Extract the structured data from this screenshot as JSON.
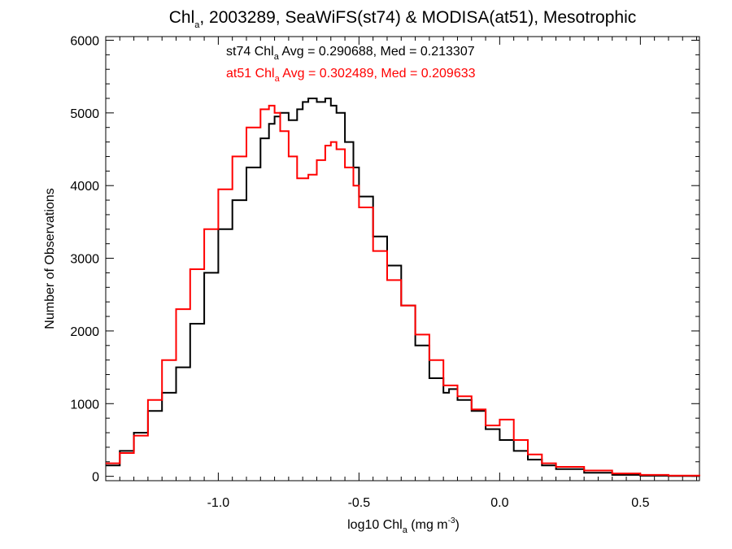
{
  "chart_data": {
    "type": "line",
    "title": {
      "prefix": "Chl",
      "prefix_sub": "a",
      "rest": ", 2003289, SeaWiFS(st74) & MODISA(at51), Mesotrophic"
    },
    "xlabel": {
      "pre": "log10 Chl",
      "sub": "a",
      "mid": " (mg m",
      "sup": "-3",
      "post": ")"
    },
    "ylabel": "Number of Observations",
    "xlim": [
      -1.4,
      0.71
    ],
    "ylim": [
      -60,
      6050
    ],
    "xticks": [
      -1.0,
      -0.5,
      0.0,
      0.5
    ],
    "xtick_labels": [
      "-1.0",
      "-0.5",
      "0.0",
      "0.5"
    ],
    "yticks": [
      0,
      1000,
      2000,
      3000,
      4000,
      5000,
      6000
    ],
    "ytick_labels": [
      "0",
      "1000",
      "2000",
      "3000",
      "4000",
      "5000",
      "6000"
    ],
    "annotations": [
      {
        "series": "st74",
        "pre": "st74 Chl",
        "sub": "a",
        "post": " Avg = 0.290688, Med = 0.213307",
        "color": "#000000"
      },
      {
        "series": "at51",
        "pre": "at51 Chl",
        "sub": "a",
        "post": " Avg = 0.302489, Med = 0.209633",
        "color": "#ff0000"
      }
    ],
    "series": [
      {
        "name": "st74",
        "color": "#000000",
        "x": [
          -1.4,
          -1.35,
          -1.3,
          -1.25,
          -1.2,
          -1.15,
          -1.1,
          -1.05,
          -1.0,
          -0.95,
          -0.9,
          -0.85,
          -0.82,
          -0.8,
          -0.78,
          -0.75,
          -0.72,
          -0.7,
          -0.68,
          -0.65,
          -0.62,
          -0.6,
          -0.58,
          -0.55,
          -0.52,
          -0.5,
          -0.45,
          -0.4,
          -0.35,
          -0.3,
          -0.25,
          -0.2,
          -0.18,
          -0.15,
          -0.1,
          -0.05,
          0.0,
          0.05,
          0.1,
          0.15,
          0.2,
          0.3,
          0.4,
          0.5,
          0.6,
          0.71
        ],
        "y": [
          150,
          350,
          600,
          900,
          1150,
          1500,
          2100,
          2800,
          3400,
          3800,
          4250,
          4650,
          4850,
          4950,
          5000,
          4900,
          5050,
          5150,
          5200,
          5150,
          5200,
          5100,
          5000,
          4600,
          4250,
          3850,
          3300,
          2900,
          2350,
          1800,
          1350,
          1150,
          1200,
          1050,
          900,
          650,
          500,
          350,
          230,
          150,
          100,
          50,
          20,
          8,
          4,
          2
        ]
      },
      {
        "name": "at51",
        "color": "#ff0000",
        "x": [
          -1.4,
          -1.35,
          -1.3,
          -1.25,
          -1.2,
          -1.15,
          -1.1,
          -1.05,
          -1.0,
          -0.95,
          -0.9,
          -0.85,
          -0.82,
          -0.8,
          -0.78,
          -0.75,
          -0.72,
          -0.7,
          -0.68,
          -0.65,
          -0.62,
          -0.6,
          -0.58,
          -0.55,
          -0.52,
          -0.5,
          -0.45,
          -0.4,
          -0.35,
          -0.3,
          -0.25,
          -0.2,
          -0.18,
          -0.15,
          -0.1,
          -0.05,
          0.0,
          0.05,
          0.1,
          0.15,
          0.2,
          0.3,
          0.4,
          0.5,
          0.6,
          0.71
        ],
        "y": [
          180,
          320,
          560,
          1050,
          1600,
          2300,
          2850,
          3400,
          3950,
          4400,
          4800,
          5050,
          5100,
          5000,
          4750,
          4400,
          4100,
          4100,
          4150,
          4350,
          4550,
          4600,
          4500,
          4250,
          4000,
          3700,
          3100,
          2700,
          2350,
          1950,
          1600,
          1250,
          1250,
          1100,
          920,
          700,
          780,
          500,
          300,
          180,
          130,
          80,
          40,
          20,
          10,
          5
        ]
      }
    ],
    "grid": false,
    "legend": "none"
  }
}
